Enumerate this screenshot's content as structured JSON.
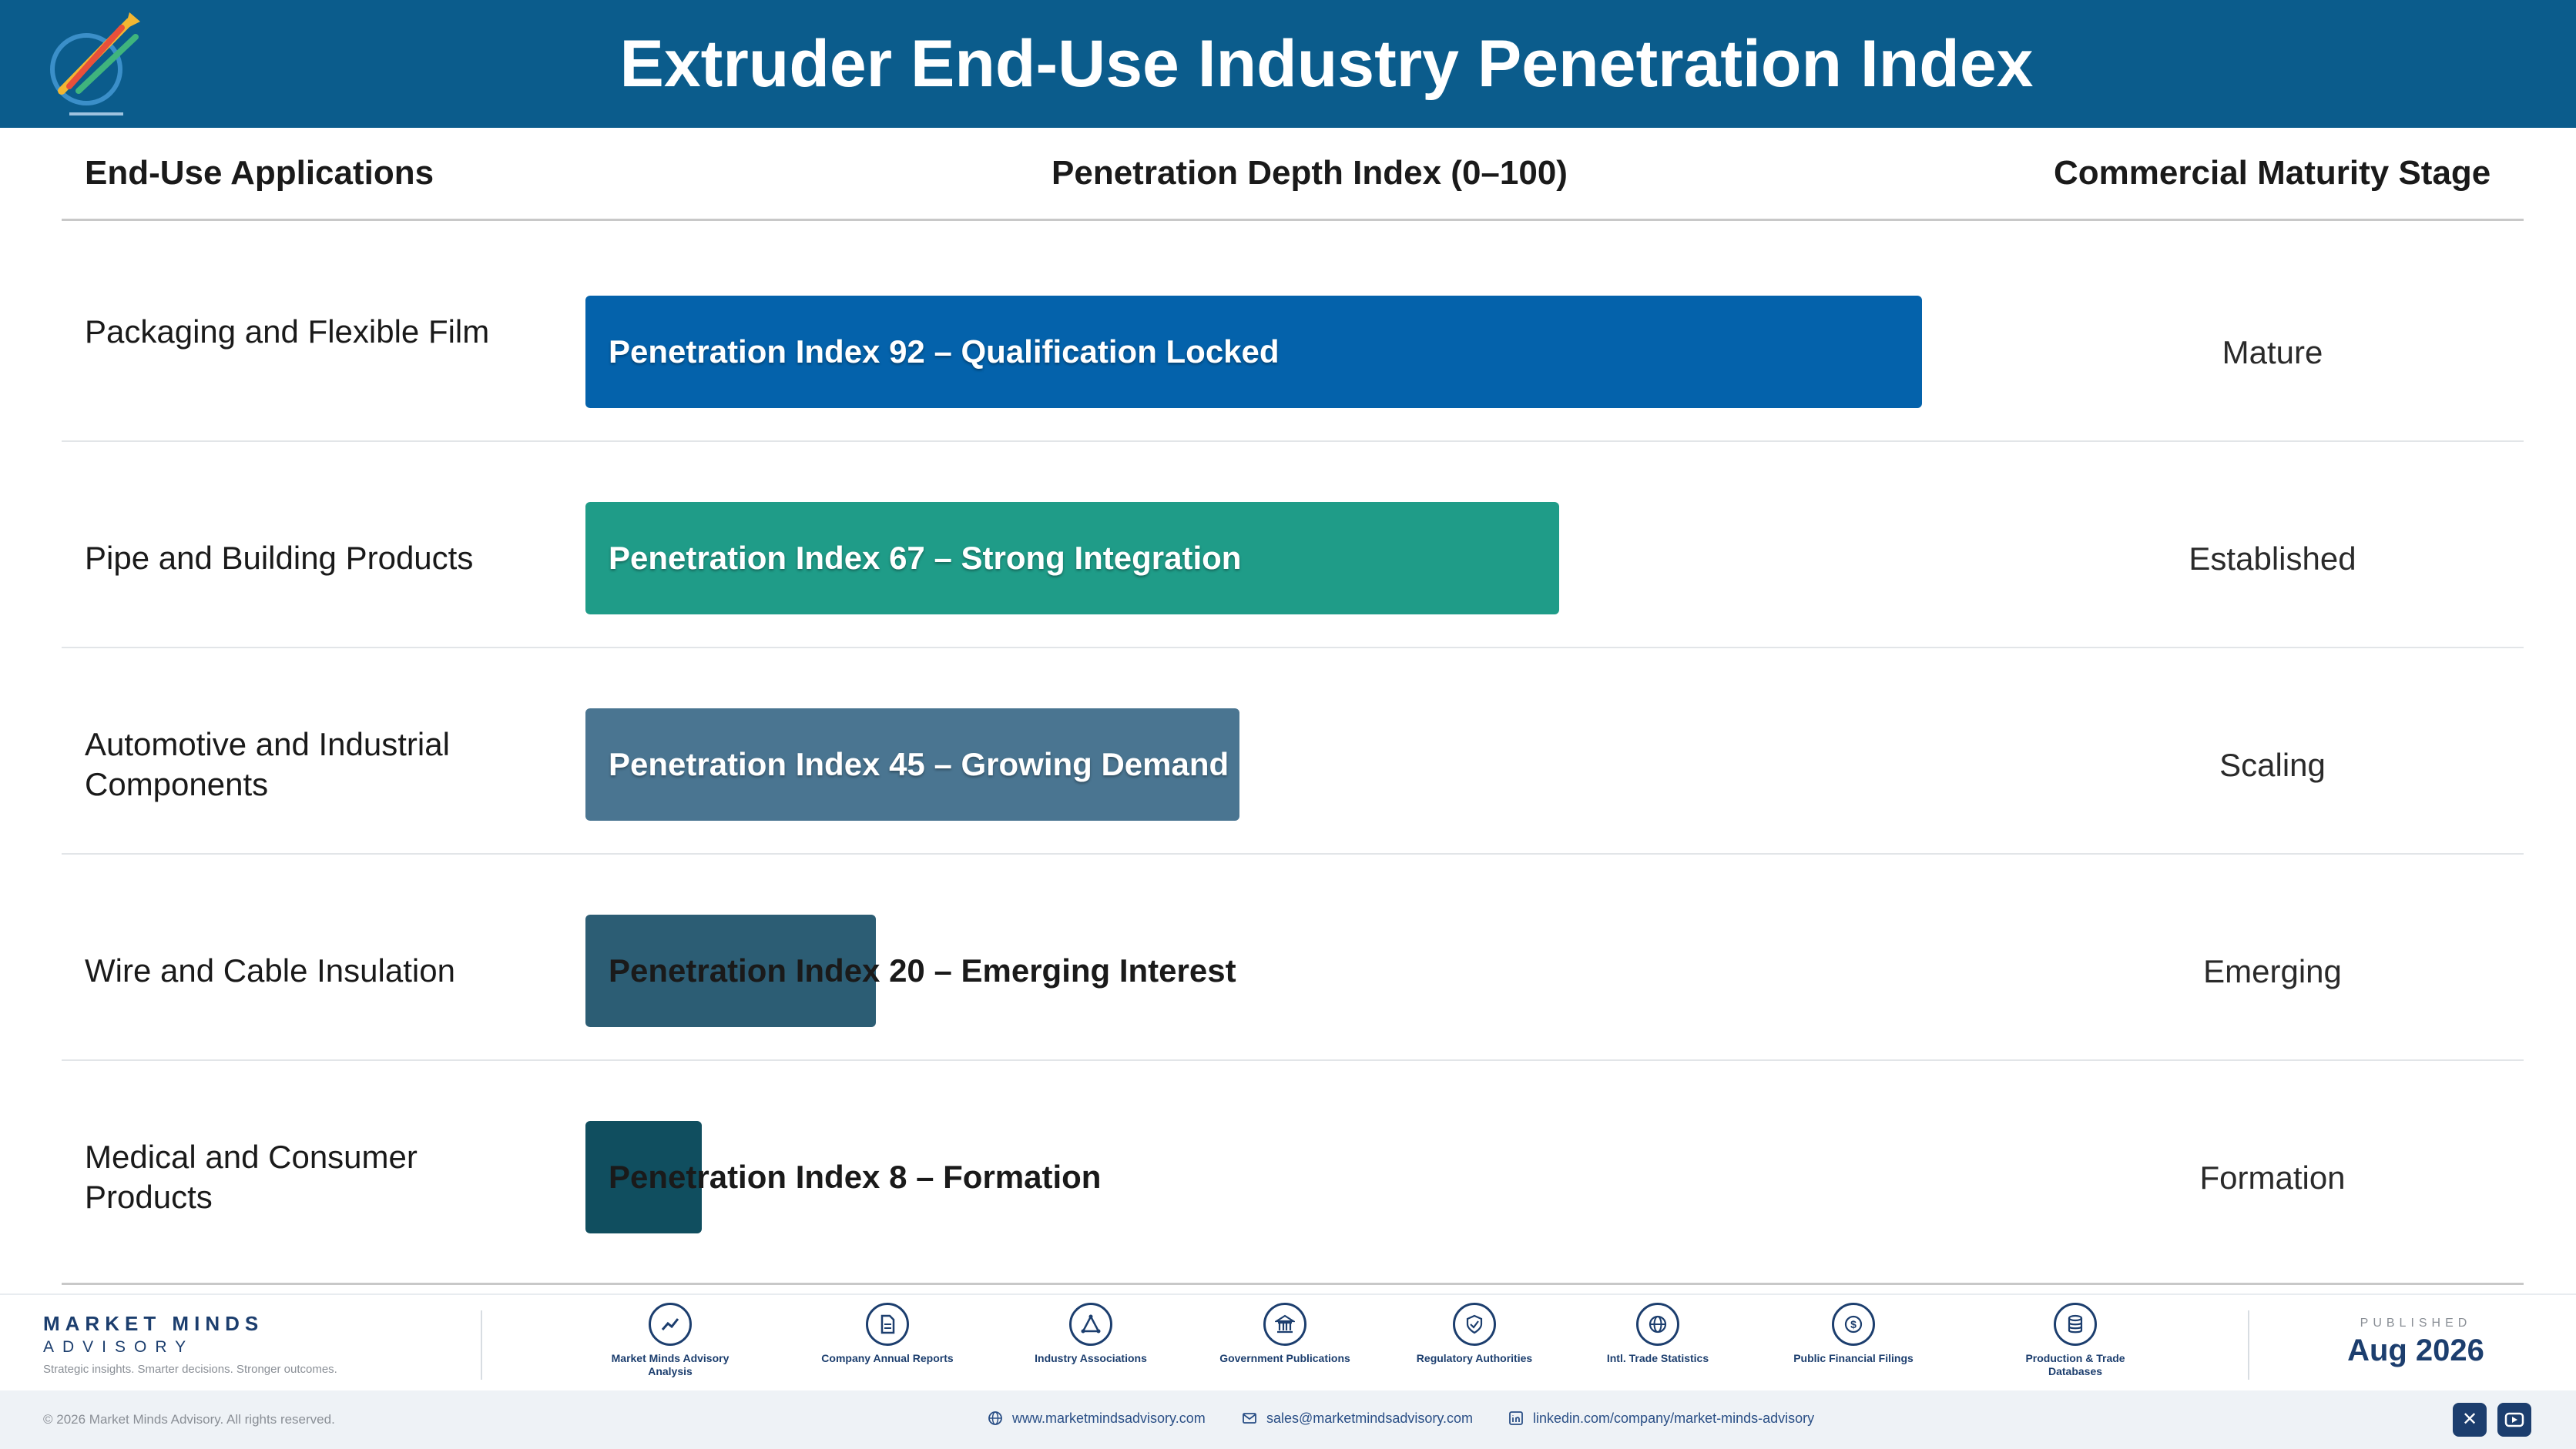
{
  "header": {
    "title": "Extruder End-Use Industry Penetration Index",
    "logo_icon": "market-minds-logo"
  },
  "columns": {
    "applications": "End-Use Applications",
    "index": "Penetration Depth Index (0–100)",
    "stage": "Commercial Maturity Stage"
  },
  "chart_data": {
    "type": "bar",
    "orientation": "horizontal",
    "xlim": [
      0,
      100
    ],
    "categories": [
      "Packaging and Flexible Film",
      "Pipe and Building Products",
      "Automotive and Industrial Components",
      "Wire and Cable Insulation",
      "Medical and Consumer Products"
    ],
    "values": [
      92,
      67,
      45,
      20,
      8
    ],
    "bar_labels": [
      "Penetration Index 92 – Qualification Locked",
      "Penetration Index 67 – Strong Integration",
      "Penetration Index 45 – Growing Demand",
      "Penetration Index 20 – Emerging Interest",
      "Penetration Index 8 – Formation"
    ],
    "stages": [
      "Mature",
      "Established",
      "Scaling",
      "Emerging",
      "Formation"
    ],
    "colors": [
      "#0462ab",
      "#1f9c88",
      "#4a7591",
      "#2c5d74",
      "#104e5f"
    ],
    "title": "Extruder End-Use Industry Penetration Index"
  },
  "footer": {
    "brand_name": "MARKET MINDS",
    "brand_sub": "ADVISORY",
    "tagline": "Strategic insights. Smarter decisions. Stronger outcomes.",
    "sources": [
      {
        "label": "Market Minds Advisory Analysis",
        "icon": "chart-trend-icon"
      },
      {
        "label": "Company Annual Reports",
        "icon": "document-icon"
      },
      {
        "label": "Industry Associations",
        "icon": "network-icon"
      },
      {
        "label": "Government Publications",
        "icon": "government-building-icon"
      },
      {
        "label": "Regulatory Authorities",
        "icon": "shield-check-icon"
      },
      {
        "label": "Intl. Trade Statistics",
        "icon": "globe-icon"
      },
      {
        "label": "Public Financial Filings",
        "icon": "dollar-coin-icon"
      },
      {
        "label": "Production & Trade Databases",
        "icon": "database-icon"
      }
    ],
    "published_label": "PUBLISHED",
    "published_date": "Aug 2026"
  },
  "subfooter": {
    "copyright": "© 2026 Market Minds Advisory. All rights reserved.",
    "website": "www.marketmindsadvisory.com",
    "email": "sales@marketmindsadvisory.com",
    "linkedin": "linkedin.com/company/market-minds-advisory",
    "social_icons": [
      "x-icon",
      "youtube-icon"
    ]
  }
}
